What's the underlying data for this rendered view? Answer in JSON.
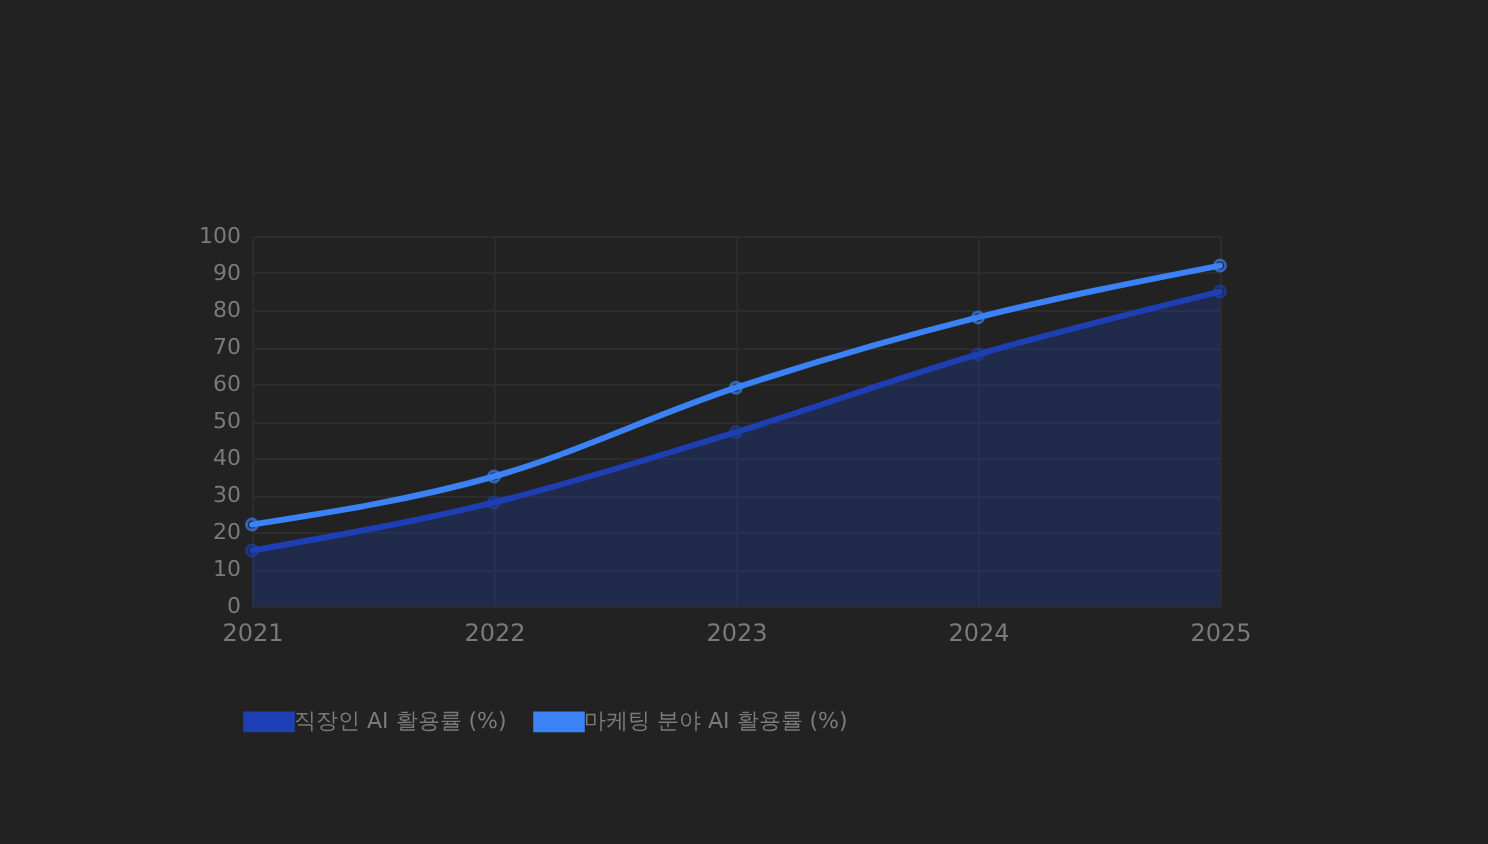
{
  "chart_data": {
    "type": "line",
    "categories": [
      "2021",
      "2022",
      "2023",
      "2024",
      "2025"
    ],
    "series": [
      {
        "name": "직장인 AI 활용률 (%)",
        "type": "area",
        "color": "#1e3fb4",
        "values": [
          15,
          28,
          47,
          68,
          85
        ]
      },
      {
        "name": "마케팅 분야 AI 활용률 (%)",
        "type": "line",
        "color": "#3b82f6",
        "values": [
          22,
          35,
          59,
          78,
          92
        ]
      }
    ],
    "ylim": [
      0,
      100
    ],
    "yticks": [
      0,
      10,
      20,
      30,
      40,
      50,
      60,
      70,
      80,
      90,
      100
    ],
    "grid": true,
    "legend": "bottom",
    "marker": "circle",
    "line_style": "solid"
  }
}
